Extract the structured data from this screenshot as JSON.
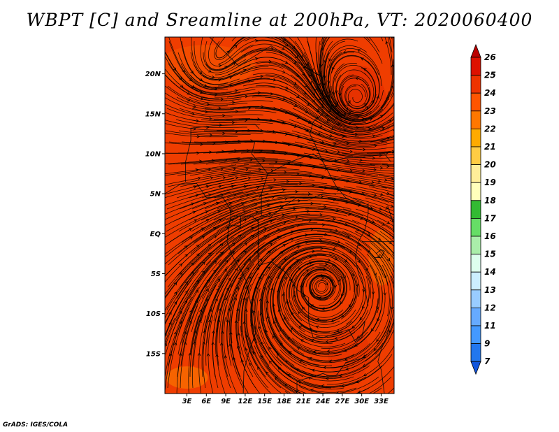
{
  "title": "WBPT [C] and Sreamline at 200hPa, VT: 2020060400",
  "credit": "GrADS: IGES/COLA",
  "map": {
    "y_labels": [
      {
        "label": "20N",
        "lat": 20
      },
      {
        "label": "15N",
        "lat": 15
      },
      {
        "label": "10N",
        "lat": 10
      },
      {
        "label": "5N",
        "lat": 5
      },
      {
        "label": "EQ",
        "lat": 0
      },
      {
        "label": "5S",
        "lat": -5
      },
      {
        "label": "10S",
        "lat": -10
      },
      {
        "label": "15S",
        "lat": -15
      }
    ],
    "x_labels": [
      {
        "label": "3E",
        "lon": 3
      },
      {
        "label": "6E",
        "lon": 6
      },
      {
        "label": "9E",
        "lon": 9
      },
      {
        "label": "12E",
        "lon": 12
      },
      {
        "label": "15E",
        "lon": 15
      },
      {
        "label": "18E",
        "lon": 18
      },
      {
        "label": "21E",
        "lon": 21
      },
      {
        "label": "24E",
        "lon": 24
      },
      {
        "label": "27E",
        "lon": 27
      },
      {
        "label": "30E",
        "lon": 30
      },
      {
        "label": "33E",
        "lon": 33
      }
    ],
    "fill_colors": [
      "#ff4400",
      "#ee3300",
      "#f85500",
      "#e23a00"
    ],
    "vortex_center": {
      "lon": 23.8,
      "lat": -6.5
    }
  },
  "colorbar": {
    "levels": [
      "26",
      "25",
      "24",
      "23",
      "22",
      "21",
      "20",
      "19",
      "18",
      "17",
      "16",
      "15",
      "14",
      "13",
      "12",
      "11",
      "9",
      "7"
    ],
    "colors": [
      "#bb0000",
      "#dd1100",
      "#ee3300",
      "#ff5500",
      "#ff7700",
      "#ffaa00",
      "#ffcc44",
      "#ffee99",
      "#ffffbb",
      "#33bb33",
      "#66dd66",
      "#aaeeaa",
      "#ddffee",
      "#cceeff",
      "#99ccff",
      "#66aaff",
      "#4499ff",
      "#2277ee",
      "#1155dd"
    ]
  }
}
